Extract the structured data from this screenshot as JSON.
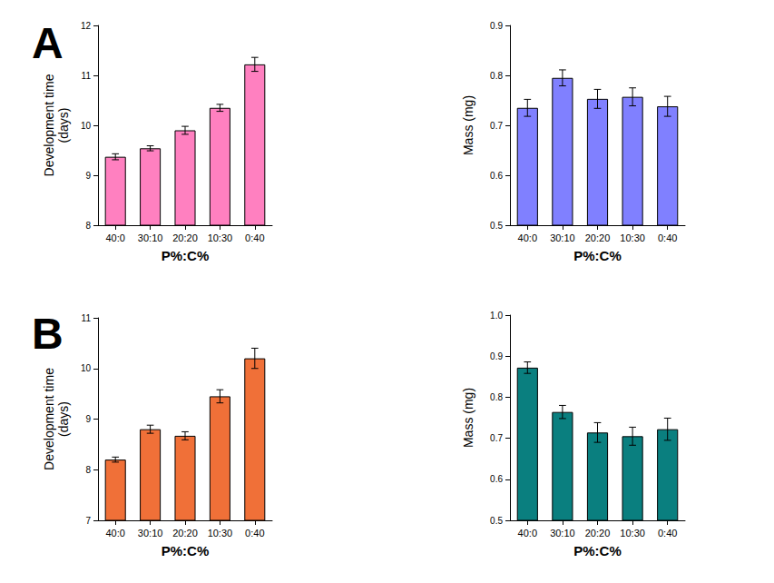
{
  "chart_data": [
    {
      "type": "bar",
      "title": "A",
      "categories": [
        "40:0",
        "30:10",
        "20:20",
        "10:30",
        "0:40"
      ],
      "values": [
        9.37,
        9.54,
        9.9,
        10.35,
        11.22
      ],
      "errors": [
        0.06,
        0.05,
        0.08,
        0.07,
        0.14
      ],
      "color": "#ff80c0",
      "xlabel": "P%:C%",
      "ylabel": "Development time\n(days)",
      "ylim": [
        8,
        12
      ],
      "yticks": [
        8,
        9,
        10,
        11,
        12
      ],
      "grid": false
    },
    {
      "type": "bar",
      "categories": [
        "40:0",
        "30:10",
        "20:20",
        "10:30",
        "0:40"
      ],
      "values": [
        0.735,
        0.795,
        0.753,
        0.757,
        0.738
      ],
      "errors": [
        0.017,
        0.016,
        0.019,
        0.018,
        0.02
      ],
      "color": "#8080ff",
      "xlabel": "P%:C%",
      "ylabel": "Mass (mg)",
      "ylim": [
        0.5,
        0.9
      ],
      "yticks": [
        0.5,
        0.6,
        0.7,
        0.8,
        0.9
      ],
      "grid": false
    },
    {
      "type": "bar",
      "title": "B",
      "categories": [
        "40:0",
        "30:10",
        "20:20",
        "10:30",
        "0:40"
      ],
      "values": [
        8.2,
        8.8,
        8.67,
        9.45,
        10.2
      ],
      "errors": [
        0.05,
        0.08,
        0.08,
        0.13,
        0.2
      ],
      "color": "#f07038",
      "xlabel": "P%:C%",
      "ylabel": "Development time\n(days)",
      "ylim": [
        7,
        11
      ],
      "yticks": [
        7,
        8,
        9,
        10,
        11
      ],
      "grid": false
    },
    {
      "type": "bar",
      "categories": [
        "40:0",
        "30:10",
        "20:20",
        "10:30",
        "0:40"
      ],
      "values": [
        0.872,
        0.764,
        0.714,
        0.705,
        0.722
      ],
      "errors": [
        0.014,
        0.016,
        0.024,
        0.022,
        0.027
      ],
      "color": "#0a7f7f",
      "xlabel": "P%:C%",
      "ylabel": "Mass (mg)",
      "ylim": [
        0.5,
        1
      ],
      "yticks": [
        0.5,
        0.6,
        0.7,
        0.8,
        0.9,
        {
          "value": 1,
          "label": "1.0"
        }
      ],
      "grid": false
    }
  ]
}
